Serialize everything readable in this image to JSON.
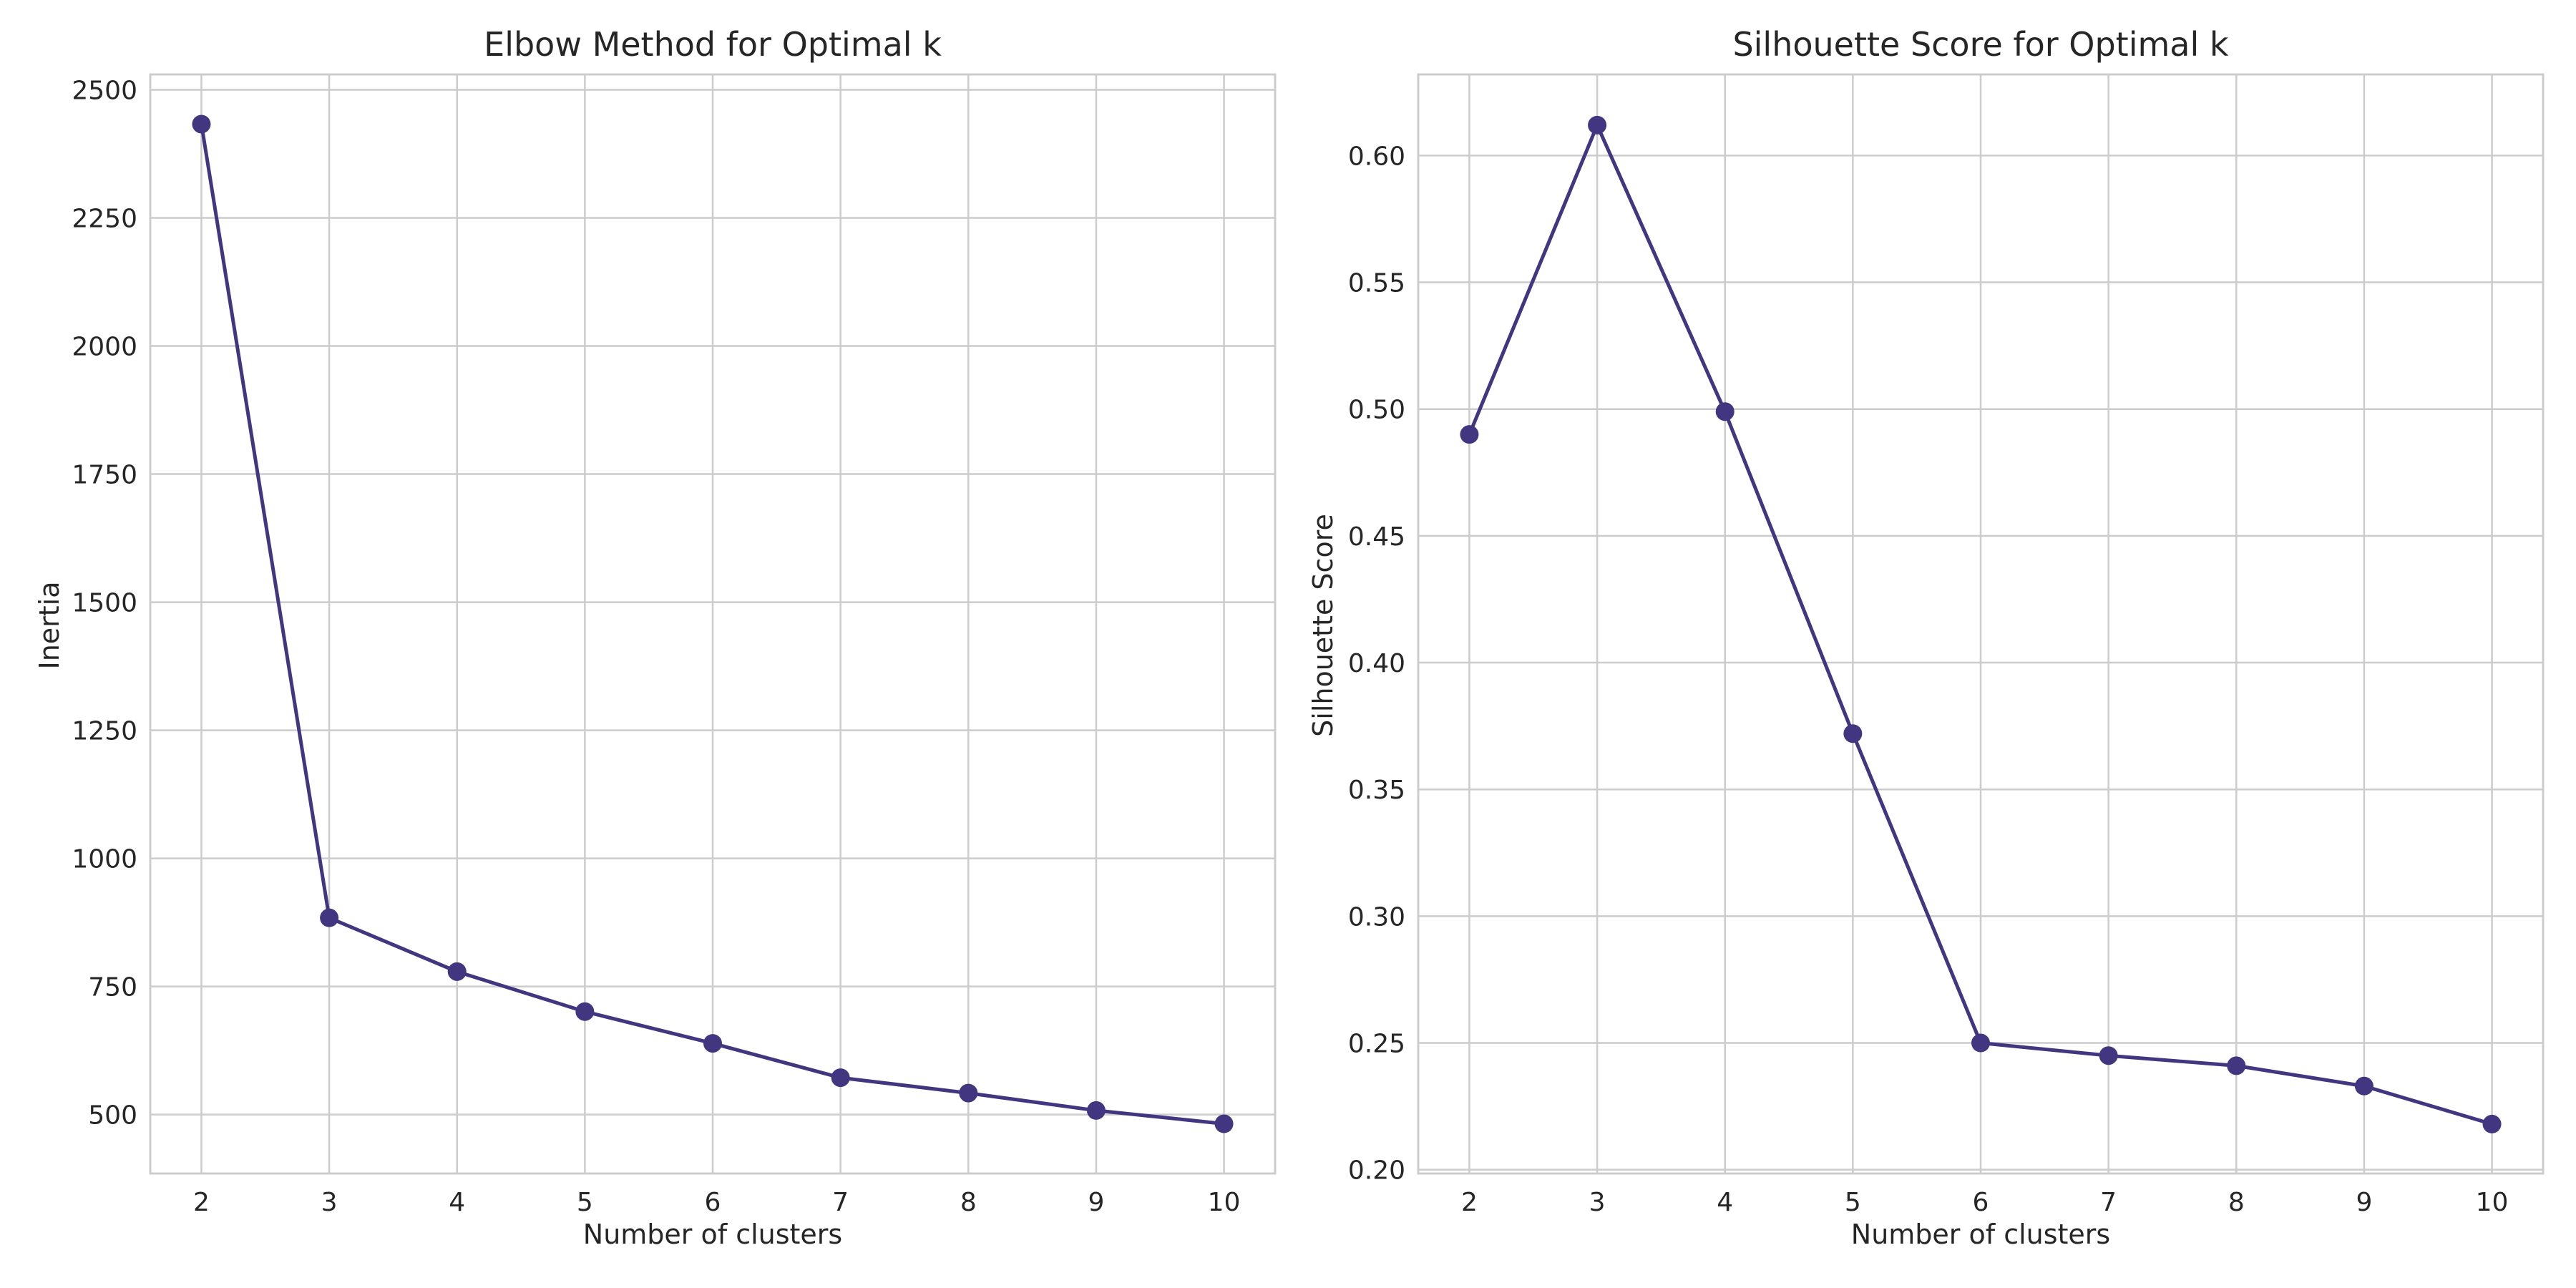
{
  "chart_data": [
    {
      "type": "line",
      "title": "Elbow Method for Optimal k",
      "xlabel": "Number of clusters",
      "ylabel": "Inertia",
      "x": [
        2,
        3,
        4,
        5,
        6,
        7,
        8,
        9,
        10
      ],
      "y": [
        2433,
        884,
        779,
        701,
        639,
        572,
        542,
        508,
        482
      ],
      "xlim": [
        1.6,
        10.4
      ],
      "ylim": [
        385,
        2530
      ],
      "xticks": [
        2,
        3,
        4,
        5,
        6,
        7,
        8,
        9,
        10
      ],
      "yticks": [
        500,
        750,
        1000,
        1250,
        1500,
        1750,
        2000,
        2250,
        2500
      ],
      "ytick_decimals": 0,
      "marker": "circle",
      "color": "#433680",
      "grid": true
    },
    {
      "type": "line",
      "title": "Silhouette Score for Optimal k",
      "xlabel": "Number of clusters",
      "ylabel": "Silhouette Score",
      "x": [
        2,
        3,
        4,
        5,
        6,
        7,
        8,
        9,
        10
      ],
      "y": [
        0.49,
        0.612,
        0.499,
        0.372,
        0.25,
        0.245,
        0.241,
        0.233,
        0.218
      ],
      "xlim": [
        1.6,
        10.4
      ],
      "ylim": [
        0.1985,
        0.632
      ],
      "xticks": [
        2,
        3,
        4,
        5,
        6,
        7,
        8,
        9,
        10
      ],
      "yticks": [
        0.2,
        0.25,
        0.3,
        0.35,
        0.4,
        0.45,
        0.5,
        0.55,
        0.6
      ],
      "ytick_decimals": 2,
      "marker": "circle",
      "color": "#433680",
      "grid": true
    }
  ]
}
